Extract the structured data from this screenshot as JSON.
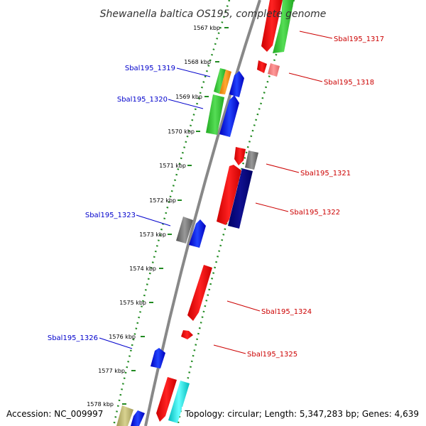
{
  "title": "Shewanella baltica OS195, complete genome",
  "accession": "Accession: NC_009997",
  "topology": "Topology: circular; Length: 5,347,283 bp; Genes: 4,639",
  "kbp_ticks": [
    "1567 kbp",
    "1568 kbp",
    "1569 kbp",
    "1570 kbp",
    "1571 kbp",
    "1572 kbp",
    "1573 kbp",
    "1574 kbp",
    "1575 kbp",
    "1576 kbp",
    "1577 kbp",
    "1578 kbp"
  ],
  "left_labels": [
    "Sbal195_1319",
    "Sbal195_1320",
    "Sbal195_1323",
    "Sbal195_1326"
  ],
  "right_labels": [
    "Sbal195_1317",
    "Sbal195_1318",
    "Sbal195_1321",
    "Sbal195_1322",
    "Sbal195_1324",
    "Sbal195_1325"
  ],
  "colors": {
    "left_label": "#0000cc",
    "right_label": "#cc0000",
    "backbone": "#888888",
    "track_dots": "#228b22",
    "red": "#ff0000",
    "light_red": "#ff8080",
    "green": "#33cc33",
    "orange": "#ff9900",
    "blue": "#0000ff",
    "navy": "#000080",
    "gray": "#777777",
    "cyan": "#00ffff",
    "khaki": "#bdb76b"
  }
}
